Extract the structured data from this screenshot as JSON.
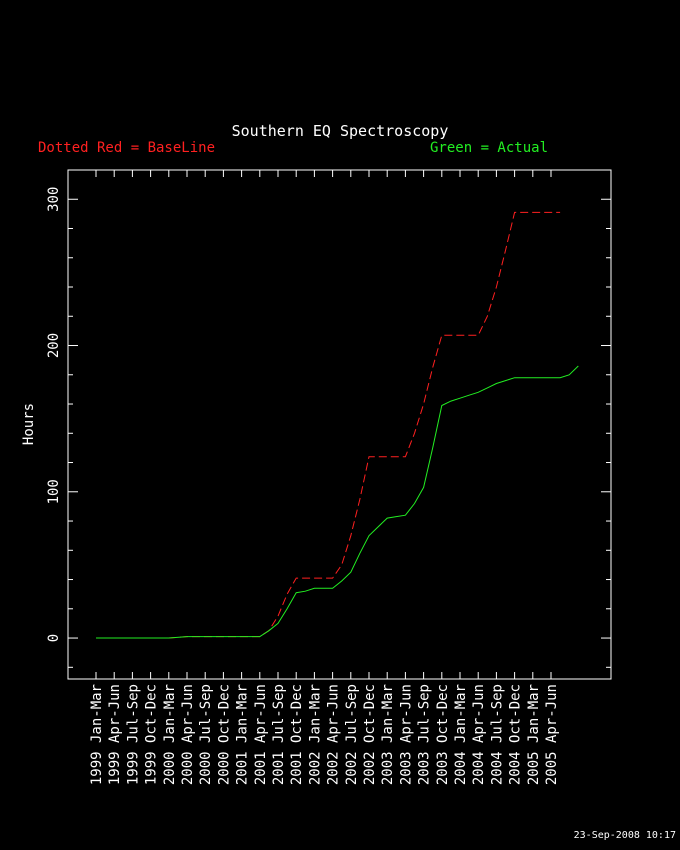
{
  "chart_data": {
    "type": "line",
    "title": "Southern EQ Spectroscopy",
    "legend_left": "Dotted Red = BaseLine",
    "legend_right": "Green = Actual",
    "ylabel": "Hours",
    "xlabel": "",
    "ylim": [
      -28,
      320
    ],
    "yticks": [
      0,
      100,
      200,
      300
    ],
    "categories": [
      "1999 Jan-Mar",
      "1999 Apr-Jun",
      "1999 Jul-Sep",
      "1999 Oct-Dec",
      "2000 Jan-Mar",
      "2000 Apr-Jun",
      "2000 Jul-Sep",
      "2000 Oct-Dec",
      "2001 Jan-Mar",
      "2001 Apr-Jun",
      "2001 Jul-Sep",
      "2001 Oct-Dec",
      "2002 Jan-Mar",
      "2002 Apr-Jun",
      "2002 Jul-Sep",
      "2002 Oct-Dec",
      "2003 Jan-Mar",
      "2003 Apr-Jun",
      "2003 Jul-Sep",
      "2003 Oct-Dec",
      "2004 Jan-Mar",
      "2004 Apr-Jun",
      "2004 Jul-Sep",
      "2004 Oct-Dec",
      "2005 Jan-Mar",
      "2005 Apr-Jun"
    ],
    "series": [
      {
        "name": "BaseLine",
        "color": "#ff2020",
        "dashed": true,
        "x": [
          0,
          1,
          2,
          3,
          4,
          5,
          6,
          7,
          8,
          9,
          9.5,
          10,
          10.5,
          11,
          12,
          13,
          13.5,
          14,
          14.5,
          15,
          16,
          17,
          17.5,
          18,
          18.5,
          19,
          20,
          21,
          21.5,
          22,
          22.5,
          23,
          23.5,
          24,
          25,
          25.5
        ],
        "y": [
          0,
          0,
          0,
          0,
          0,
          1,
          1,
          1,
          1,
          1,
          5,
          15,
          30,
          41,
          41,
          41,
          50,
          70,
          95,
          124,
          124,
          124,
          140,
          160,
          185,
          207,
          207,
          207,
          220,
          240,
          265,
          291,
          291,
          291,
          291,
          291
        ]
      },
      {
        "name": "Actual",
        "color": "#22ee22",
        "dashed": false,
        "x": [
          0,
          1,
          2,
          3,
          4,
          5,
          6,
          7,
          8,
          9,
          9.5,
          10,
          10.5,
          11,
          11.5,
          12,
          12.5,
          13,
          13.5,
          14,
          14.5,
          15,
          15.5,
          16,
          16.5,
          17,
          17.5,
          18,
          18.5,
          19,
          19.5,
          20,
          20.5,
          21,
          21.5,
          22,
          22.5,
          23,
          23.5,
          24,
          25,
          25.5,
          26,
          26.5
        ],
        "y": [
          0,
          0,
          0,
          0,
          0,
          1,
          1,
          1,
          1,
          1,
          5,
          10,
          20,
          31,
          32,
          34,
          34,
          34,
          39,
          45,
          58,
          70,
          76,
          82,
          83,
          84,
          92,
          103,
          130,
          159,
          162,
          164,
          166,
          168,
          171,
          174,
          176,
          178,
          178,
          178,
          178,
          178,
          180,
          186
        ]
      }
    ]
  },
  "footer": "23-Sep-2008 10:17"
}
